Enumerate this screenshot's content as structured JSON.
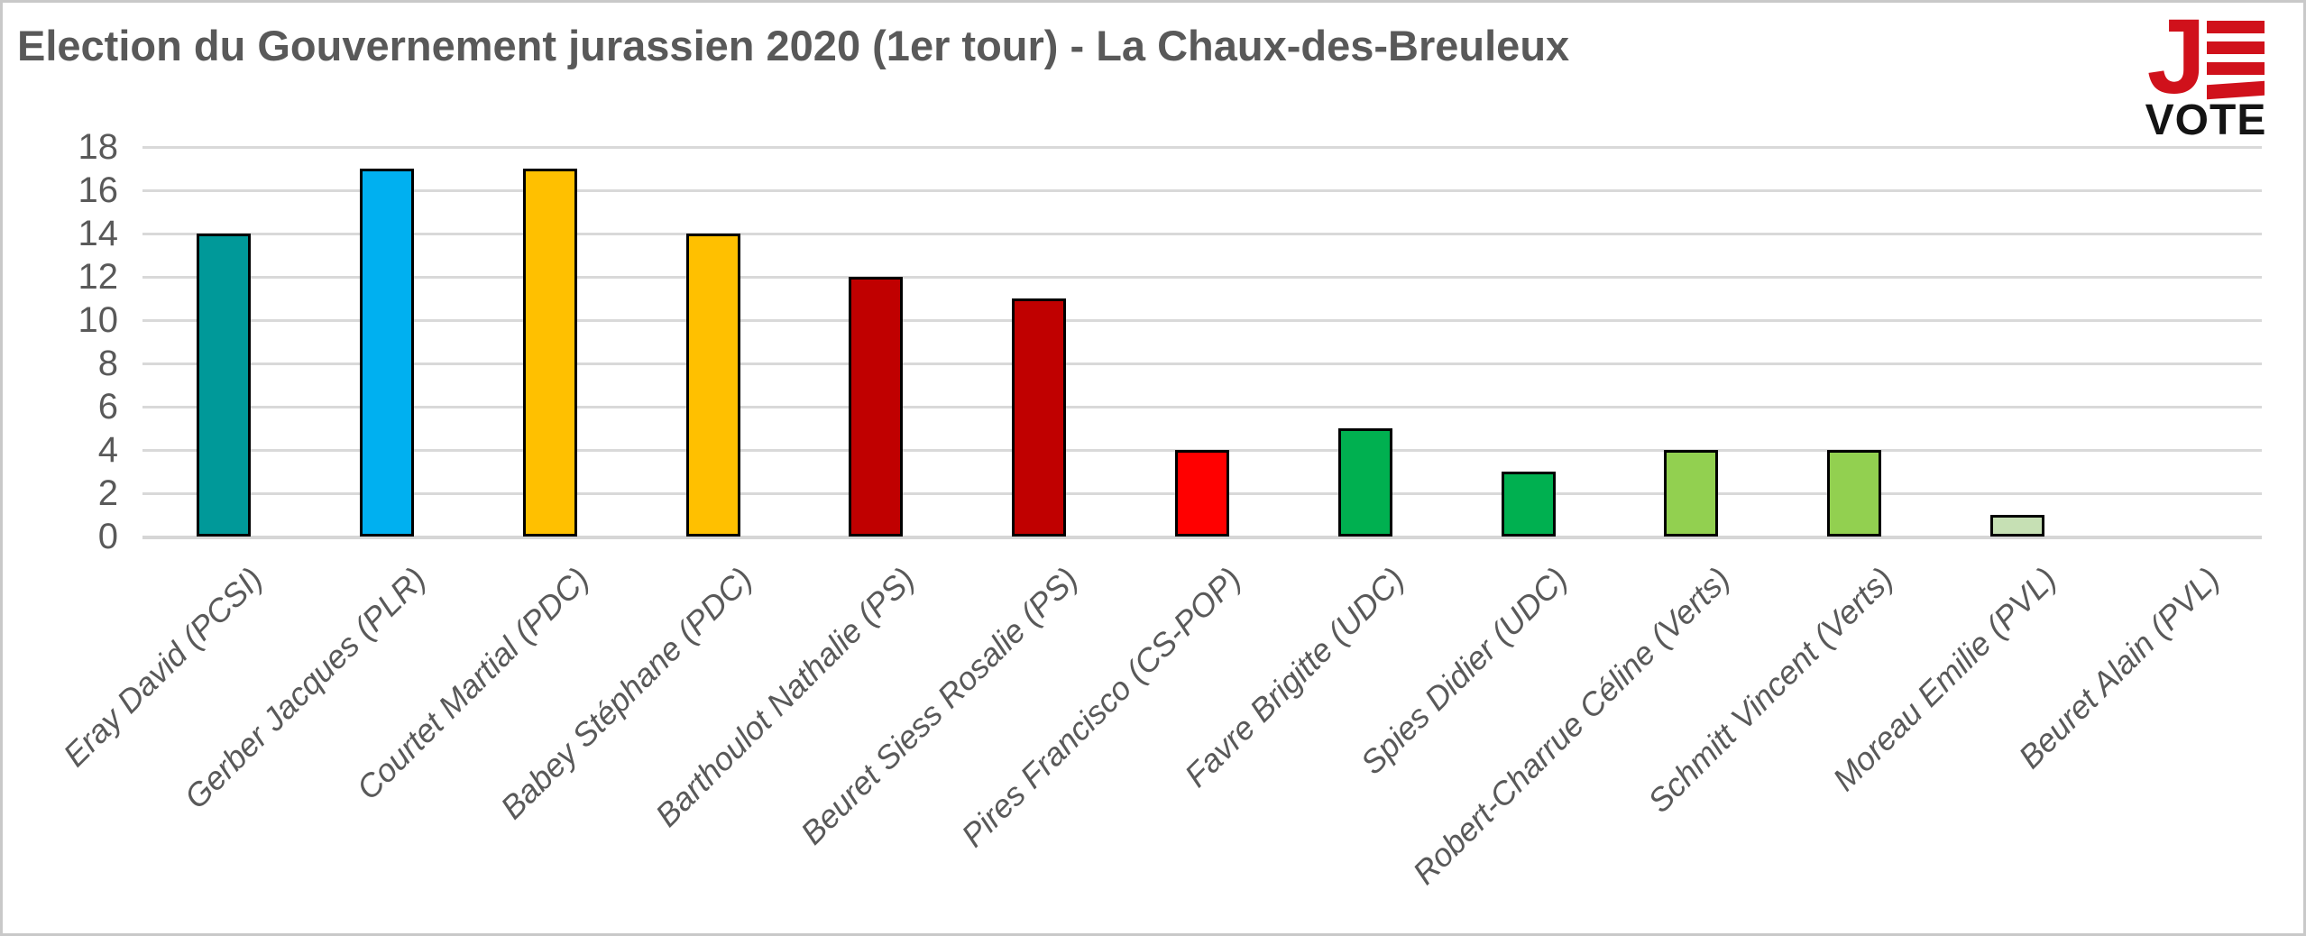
{
  "title": "Election du Gouvernement jurassien 2020 (1er tour) - La Chaux-des-Breuleux",
  "logo": {
    "j_letter": "J",
    "vote_text": "VOTE",
    "red": "#d0111b",
    "black": "#141414"
  },
  "chart_data": {
    "type": "bar",
    "title": "Election du Gouvernement jurassien 2020 (1er tour) - La Chaux-des-Breuleux",
    "categories": [
      "Eray David (PCSI)",
      "Gerber Jacques (PLR)",
      "Courtet Martial (PDC)",
      "Babey Stéphane (PDC)",
      "Barthoulot Nathalie (PS)",
      "Beuret Siess Rosalie (PS)",
      "Pires Francisco (CS-POP)",
      "Favre Brigitte (UDC)",
      "Spies Didier (UDC)",
      "Robert-Charrue Céline (Verts)",
      "Schmitt Vincent (Verts)",
      "Moreau Emilie (PVL)",
      "Beuret Alain (PVL)"
    ],
    "values": [
      14,
      17,
      17,
      14,
      12,
      11,
      4,
      5,
      3,
      4,
      4,
      1,
      0
    ],
    "bar_colors": [
      "#009999",
      "#00b0f0",
      "#ffc000",
      "#ffc000",
      "#c00000",
      "#c00000",
      "#ff0000",
      "#00b050",
      "#00b050",
      "#92d050",
      "#92d050",
      "#c6e0b4",
      "#c6e0b4"
    ],
    "bar_border_color": "#000000",
    "xlabel": "",
    "ylabel": "",
    "ylim": [
      0,
      18
    ],
    "ytick_step": 2,
    "yticks": [
      0,
      2,
      4,
      6,
      8,
      10,
      12,
      14,
      16,
      18
    ],
    "grid": true,
    "grid_color": "#d9d9d9",
    "legend": false,
    "label_color": "#595959"
  }
}
